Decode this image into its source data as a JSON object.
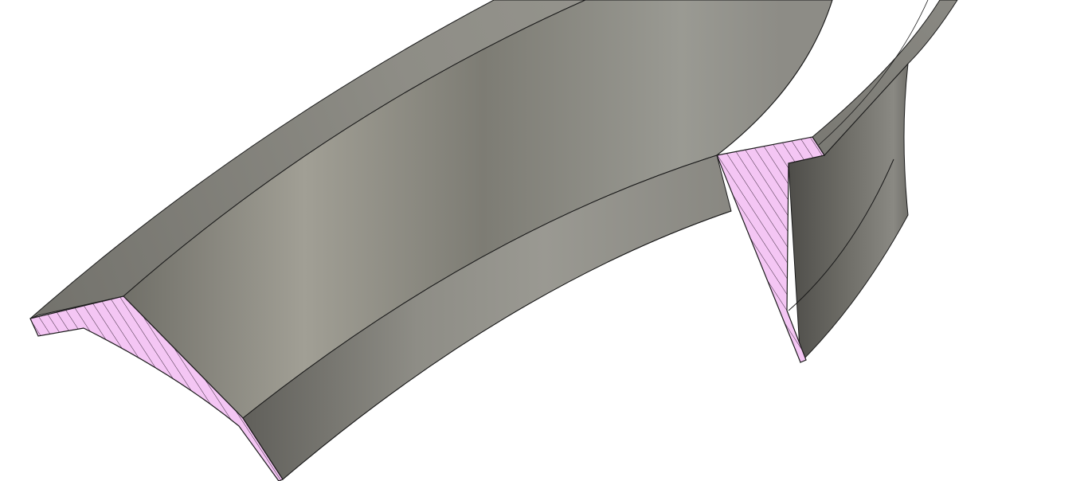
{
  "scene": {
    "subject": "cad-section-view",
    "background_color": "#ffffff",
    "colors": {
      "section_fill": "#f4c6f4",
      "hatch_line": "#2a1a2a",
      "body_mid": "#8f8e86",
      "body_light": "#a4a298",
      "body_dark": "#65645e",
      "edge_line": "#1a1a1a"
    },
    "faces": [
      "outer-flange-top",
      "inner-surface",
      "lower-rim",
      "right-outer-wall",
      "right-section-face",
      "left-section-face"
    ]
  }
}
